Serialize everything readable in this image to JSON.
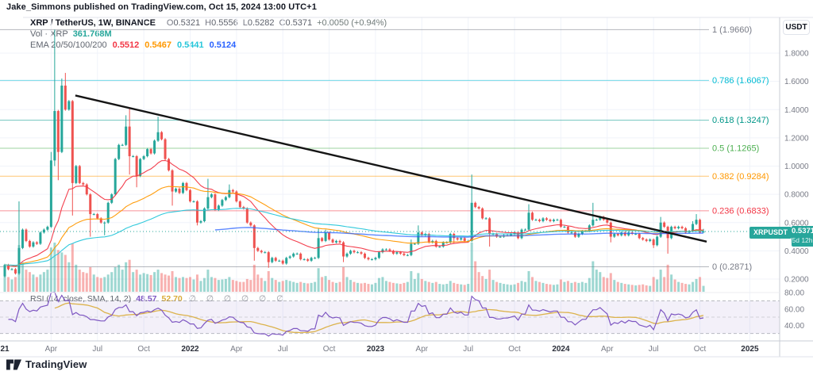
{
  "byline": "Jake_Simmons published on TradingView.com, Oct 15, 2024 13:00 UTC+1",
  "header": {
    "symbol": "XRP / TetherUS, 1W, BINANCE",
    "o_label": "O",
    "o": "0.5321",
    "h_label": "H",
    "h": "0.5556",
    "l_label": "L",
    "l": "0.5282",
    "c_label": "C",
    "c": "0.5371",
    "change": "+0.0050 (+0.94%)",
    "volume_label": "Vol · XRP",
    "volume_value": "361.768M",
    "ema_label": "EMA 20/50/100/200",
    "ema_values": [
      "0.5512",
      "0.5467",
      "0.5441",
      "0.5124"
    ]
  },
  "rsi_panel": {
    "label": "RSI (14, close, SMA, 14, 2)",
    "value": "48.57",
    "sma_value": "52.70",
    "empties": "∅ ∅ ∅ ∅ ∅ ∅",
    "ticks": [
      {
        "text": "80.00",
        "v": 80
      },
      {
        "text": "60.00",
        "v": 60
      },
      {
        "text": "40.00",
        "v": 40
      }
    ]
  },
  "price_axis": {
    "currency": "USDT",
    "ticks": [
      "1.8000",
      "1.6000",
      "1.4000",
      "1.2000",
      "1.0000",
      "0.8000",
      "0.6000",
      "0.4000",
      "0.2000"
    ],
    "price_label": {
      "symbol": "XRPUSDT",
      "price": "0.5371",
      "countdown": "5d 12h"
    }
  },
  "time_axis": {
    "labels": [
      {
        "text": "21",
        "week": 0,
        "bold": true
      },
      {
        "text": "Apr",
        "week": 13
      },
      {
        "text": "Jul",
        "week": 26
      },
      {
        "text": "Oct",
        "week": 39
      },
      {
        "text": "2022",
        "week": 52,
        "bold": true
      },
      {
        "text": "Apr",
        "week": 65
      },
      {
        "text": "Jul",
        "week": 78
      },
      {
        "text": "Oct",
        "week": 91
      },
      {
        "text": "2023",
        "week": 104,
        "bold": true
      },
      {
        "text": "Apr",
        "week": 117
      },
      {
        "text": "Jul",
        "week": 130
      },
      {
        "text": "Oct",
        "week": 143
      },
      {
        "text": "2024",
        "week": 156,
        "bold": true
      },
      {
        "text": "Apr",
        "week": 169
      },
      {
        "text": "Jul",
        "week": 182
      },
      {
        "text": "Oct",
        "week": 195
      },
      {
        "text": "2025",
        "week": 209,
        "bold": true
      }
    ]
  },
  "logo_text": "TradingView",
  "colors": {
    "up": "#26a69a",
    "down": "#ef5350",
    "vol_up": "rgba(38,166,154,0.45)",
    "vol_down": "rgba(239,83,80,0.45)",
    "vol_value": "#26a69a",
    "ema": [
      "#f23645",
      "#ff9800",
      "#26c6da",
      "#2962ff"
    ],
    "rsi": "#7e57c2",
    "rsi_sma": "#d9ac3a",
    "trendline": "#151515",
    "grid": "#f0f3fa",
    "axis_text": "#787b86",
    "year_text": "#2a2e39",
    "border": "#e0e3eb",
    "divider": "#c9ccd4",
    "price_line": "#26a69a",
    "badge": "#27a69b"
  },
  "chart_data": {
    "type": "candlestick",
    "symbol": "XRPUSDT",
    "exchange": "BINANCE",
    "interval": "1W",
    "title": "XRP / TetherUS, 1W, BINANCE",
    "ylim_visible": [
      0.11,
      2.05
    ],
    "ohlc_current": {
      "open": 0.5321,
      "high": 0.5556,
      "low": 0.5282,
      "close": 0.5371,
      "change": 0.005,
      "change_pct": 0.94
    },
    "volume_current": "361.768M",
    "ema_current": {
      "20": 0.5512,
      "50": 0.5467,
      "100": 0.5441,
      "200": 0.5124
    },
    "rsi_current": 48.57,
    "rsi_sma_current": 52.7,
    "fib_levels": [
      {
        "level": "1",
        "price_text": "1.9660",
        "value": 1.966,
        "color": "#787b86"
      },
      {
        "level": "0.786",
        "price_text": "1.6067",
        "value": 1.6067,
        "color": "#00bcd4"
      },
      {
        "level": "0.618",
        "price_text": "1.3247",
        "value": 1.3247,
        "color": "#009688"
      },
      {
        "level": "0.5",
        "price_text": "1.1265",
        "value": 1.1265,
        "color": "#4caf50"
      },
      {
        "level": "0.382",
        "price_text": "0.9284",
        "value": 0.9284,
        "color": "#ff9800"
      },
      {
        "level": "0.236",
        "price_text": "0.6833",
        "value": 0.6833,
        "color": "#f23645"
      },
      {
        "level": "0",
        "price_text": "0.2871",
        "value": 0.2871,
        "color": "#787b86"
      }
    ],
    "trendline": {
      "week1": 19.8,
      "price1": 1.5,
      "week2": 196.9,
      "price2": 0.465
    },
    "current_price": 0.5371,
    "grid_prices": [
      1.8,
      1.6,
      1.4,
      1.2,
      1.0,
      0.8,
      0.6,
      0.4,
      0.2
    ],
    "start_open": 0.22,
    "closes": [
      0.3,
      0.27,
      0.27,
      0.24,
      0.42,
      0.55,
      0.47,
      0.43,
      0.46,
      0.45,
      0.53,
      0.55,
      0.57,
      1.04,
      1.39,
      1.1,
      1.57,
      1.4,
      1.46,
      0.88,
      1.0,
      0.88,
      0.87,
      0.8,
      0.66,
      0.66,
      0.63,
      0.6,
      0.6,
      0.74,
      0.8,
      1.05,
      1.15,
      1.15,
      1.28,
      1.07,
      1.07,
      0.93,
      1.05,
      1.07,
      1.12,
      1.09,
      1.18,
      1.24,
      1.19,
      1.05,
      0.97,
      0.82,
      0.84,
      0.81,
      0.88,
      0.83,
      0.75,
      0.75,
      0.6,
      0.61,
      0.7,
      0.78,
      0.8,
      0.69,
      0.72,
      0.76,
      0.78,
      0.83,
      0.82,
      0.75,
      0.71,
      0.7,
      0.6,
      0.58,
      0.42,
      0.4,
      0.39,
      0.39,
      0.32,
      0.35,
      0.33,
      0.33,
      0.31,
      0.35,
      0.36,
      0.38,
      0.38,
      0.34,
      0.34,
      0.33,
      0.35,
      0.35,
      0.49,
      0.47,
      0.53,
      0.48,
      0.46,
      0.47,
      0.46,
      0.36,
      0.38,
      0.4,
      0.39,
      0.39,
      0.38,
      0.35,
      0.34,
      0.34,
      0.35,
      0.39,
      0.41,
      0.41,
      0.4,
      0.38,
      0.39,
      0.38,
      0.37,
      0.37,
      0.45,
      0.45,
      0.53,
      0.51,
      0.52,
      0.46,
      0.47,
      0.43,
      0.43,
      0.46,
      0.46,
      0.52,
      0.49,
      0.48,
      0.49,
      0.47,
      0.47,
      0.74,
      0.71,
      0.7,
      0.63,
      0.63,
      0.52,
      0.52,
      0.5,
      0.5,
      0.51,
      0.51,
      0.52,
      0.53,
      0.49,
      0.55,
      0.55,
      0.67,
      0.62,
      0.62,
      0.61,
      0.63,
      0.62,
      0.61,
      0.62,
      0.62,
      0.57,
      0.57,
      0.53,
      0.53,
      0.5,
      0.52,
      0.54,
      0.54,
      0.58,
      0.62,
      0.62,
      0.64,
      0.62,
      0.6,
      0.5,
      0.52,
      0.51,
      0.53,
      0.51,
      0.53,
      0.52,
      0.52,
      0.49,
      0.48,
      0.47,
      0.48,
      0.44,
      0.5,
      0.6,
      0.57,
      0.49,
      0.57,
      0.56,
      0.57,
      0.56,
      0.53,
      0.54,
      0.59,
      0.62,
      0.53,
      0.5371
    ],
    "wick_overrides": {
      "4": [
        0.75,
        0.23
      ],
      "13": [
        1.1,
        null
      ],
      "14": [
        1.966,
        1.0
      ],
      "15": [
        null,
        0.9
      ],
      "16": [
        1.62,
        null
      ],
      "17": [
        1.66,
        null
      ],
      "19": [
        null,
        0.65
      ],
      "24": [
        null,
        0.5
      ],
      "28": [
        null,
        0.51
      ],
      "34": [
        1.36,
        null
      ],
      "35": [
        1.41,
        0.94
      ],
      "37": [
        null,
        0.85
      ],
      "43": [
        1.35,
        null
      ],
      "47": [
        null,
        0.72
      ],
      "54": [
        null,
        0.58
      ],
      "57": [
        0.91,
        null
      ],
      "63": [
        0.87,
        null
      ],
      "70": [
        null,
        0.33
      ],
      "74": [
        null,
        0.28
      ],
      "88": [
        0.56,
        null
      ],
      "90": [
        0.55,
        null
      ],
      "95": [
        null,
        0.32
      ],
      "114": [
        0.48,
        null
      ],
      "116": [
        0.58,
        null
      ],
      "126": [
        null,
        0.45
      ],
      "131": [
        0.94,
        null
      ],
      "136": [
        null,
        0.43
      ],
      "147": [
        0.73,
        null
      ],
      "165": [
        0.74,
        null
      ],
      "170": [
        null,
        0.46
      ],
      "182": [
        null,
        0.42
      ],
      "184": [
        0.64,
        null
      ],
      "186": [
        null,
        0.38
      ],
      "193": [
        0.61,
        null
      ],
      "194": [
        0.66,
        null
      ],
      "196": [
        0.5556,
        0.5282
      ]
    },
    "volumes_rel": [
      0.55,
      0.3,
      0.25,
      0.3,
      0.95,
      0.6,
      0.45,
      0.4,
      0.35,
      0.3,
      0.35,
      0.4,
      0.45,
      0.9,
      1.0,
      0.85,
      0.8,
      0.75,
      0.6,
      0.98,
      0.55,
      0.45,
      0.4,
      0.38,
      0.5,
      0.35,
      0.3,
      0.28,
      0.3,
      0.35,
      0.4,
      0.5,
      0.55,
      0.45,
      0.6,
      0.65,
      0.4,
      0.45,
      0.35,
      0.38,
      0.36,
      0.34,
      0.4,
      0.45,
      0.38,
      0.35,
      0.33,
      0.42,
      0.3,
      0.28,
      0.3,
      0.28,
      0.3,
      0.25,
      0.35,
      0.22,
      0.28,
      0.45,
      0.3,
      0.28,
      0.24,
      0.25,
      0.26,
      0.3,
      0.24,
      0.22,
      0.2,
      0.2,
      0.26,
      0.24,
      0.55,
      0.35,
      0.28,
      0.22,
      0.42,
      0.28,
      0.24,
      0.2,
      0.22,
      0.24,
      0.22,
      0.2,
      0.18,
      0.2,
      0.18,
      0.17,
      0.18,
      0.2,
      0.48,
      0.3,
      0.32,
      0.24,
      0.2,
      0.18,
      0.2,
      0.5,
      0.3,
      0.24,
      0.2,
      0.18,
      0.17,
      0.18,
      0.16,
      0.15,
      0.18,
      0.28,
      0.3,
      0.22,
      0.2,
      0.18,
      0.17,
      0.16,
      0.18,
      0.2,
      0.42,
      0.26,
      0.38,
      0.26,
      0.22,
      0.2,
      0.18,
      0.2,
      0.16,
      0.15,
      0.16,
      0.22,
      0.18,
      0.16,
      0.15,
      0.14,
      0.16,
      1.0,
      0.62,
      0.4,
      0.32,
      0.26,
      0.45,
      0.24,
      0.2,
      0.18,
      0.16,
      0.15,
      0.14,
      0.15,
      0.18,
      0.22,
      0.2,
      0.42,
      0.3,
      0.22,
      0.2,
      0.18,
      0.16,
      0.15,
      0.14,
      0.15,
      0.25,
      0.2,
      0.22,
      0.18,
      0.2,
      0.18,
      0.2,
      0.18,
      0.28,
      0.62,
      0.45,
      0.4,
      0.3,
      0.28,
      0.38,
      0.24,
      0.2,
      0.18,
      0.16,
      0.15,
      0.14,
      0.13,
      0.14,
      0.15,
      0.13,
      0.12,
      0.3,
      0.25,
      0.45,
      0.3,
      0.55,
      0.35,
      0.25,
      0.2,
      0.18,
      0.16,
      0.15,
      0.2,
      0.26,
      0.3,
      0.12
    ],
    "ema_periods": [
      20,
      50,
      100,
      200
    ],
    "rsi_band": {
      "upper": 70,
      "middle": 50,
      "lower": 30
    }
  }
}
